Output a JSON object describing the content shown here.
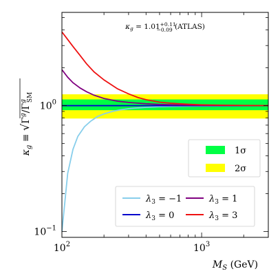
{
  "chart_data": {
    "type": "line",
    "annotation": "κg = 1.01 (ATLAS)",
    "annotation_parts": {
      "base": "κ",
      "sub": "g",
      "eq": " = 1.01",
      "sup": "+0.11",
      "subs": "−0.09",
      "tail": " (ATLAS)"
    },
    "xlabel": "MS (GeV)",
    "xlabel_parts": {
      "base": "M",
      "sub": "S",
      "tail": " (GeV)"
    },
    "ylabel": "κg ≡ √(Γg/ΓgSM)",
    "xscale": "log",
    "yscale": "log",
    "xlim": [
      100,
      3000
    ],
    "ylim": [
      0.09,
      5.5
    ],
    "x_ticks": [
      {
        "value": 100,
        "base": "10",
        "exp": "2"
      },
      {
        "value": 1000,
        "base": "10",
        "exp": "3"
      }
    ],
    "y_ticks": [
      {
        "value": 0.1,
        "base": "10",
        "exp": "−1"
      },
      {
        "value": 1,
        "base": "10",
        "exp": "0"
      }
    ],
    "bands": [
      {
        "name": "2σ",
        "low": 0.79,
        "high": 1.23,
        "color": "#ffff00"
      },
      {
        "name": "1σ",
        "low": 0.92,
        "high": 1.12,
        "color": "#00ff44"
      }
    ],
    "band_legend": [
      {
        "label": "1σ",
        "color": "#00ff44"
      },
      {
        "label": "2σ",
        "color": "#ffff00"
      }
    ],
    "series": [
      {
        "name": "λ3 = −1",
        "label": {
          "base": "λ",
          "sub": "3",
          "rest": " = −1"
        },
        "color": "#87ceeb",
        "x": [
          100,
          110,
          120,
          130,
          145,
          160,
          180,
          200,
          230,
          260,
          300,
          350,
          400,
          500,
          600,
          800,
          1000,
          1500,
          2000,
          3000
        ],
        "y": [
          0.1,
          0.29,
          0.45,
          0.57,
          0.68,
          0.75,
          0.82,
          0.86,
          0.9,
          0.925,
          0.945,
          0.96,
          0.97,
          0.98,
          0.985,
          0.99,
          0.993,
          0.996,
          0.998,
          0.999
        ]
      },
      {
        "name": "λ3 = 0",
        "label": {
          "base": "λ",
          "sub": "3",
          "rest": " = 0"
        },
        "color": "#0000cc",
        "x": [
          100,
          3000
        ],
        "y": [
          1.0,
          1.0
        ]
      },
      {
        "name": "λ3 = 1",
        "label": {
          "base": "λ",
          "sub": "3",
          "rest": " = 1"
        },
        "color": "#800080",
        "x": [
          100,
          110,
          120,
          135,
          150,
          170,
          200,
          250,
          300,
          400,
          500,
          700,
          1000,
          2000,
          3000
        ],
        "y": [
          1.93,
          1.68,
          1.52,
          1.38,
          1.29,
          1.21,
          1.14,
          1.085,
          1.06,
          1.035,
          1.022,
          1.012,
          1.006,
          1.002,
          1.001
        ]
      },
      {
        "name": "λ3 = 3",
        "label": {
          "base": "λ",
          "sub": "3",
          "rest": " = 3"
        },
        "color": "#ee1111",
        "x": [
          100,
          110,
          120,
          135,
          150,
          170,
          200,
          250,
          300,
          350,
          400,
          500,
          600,
          800,
          1000,
          1500,
          2000,
          3000
        ],
        "y": [
          3.85,
          3.35,
          2.95,
          2.5,
          2.15,
          1.85,
          1.6,
          1.36,
          1.24,
          1.16,
          1.115,
          1.065,
          1.045,
          1.025,
          1.015,
          1.007,
          1.004,
          1.002
        ]
      }
    ],
    "legend_lines_order": [
      "λ3 = −1",
      "λ3 = 1",
      "λ3 = 0",
      "λ3 = 3"
    ],
    "legend_placement": "bottom-right",
    "band_legend_placement": "right",
    "grid": false
  }
}
